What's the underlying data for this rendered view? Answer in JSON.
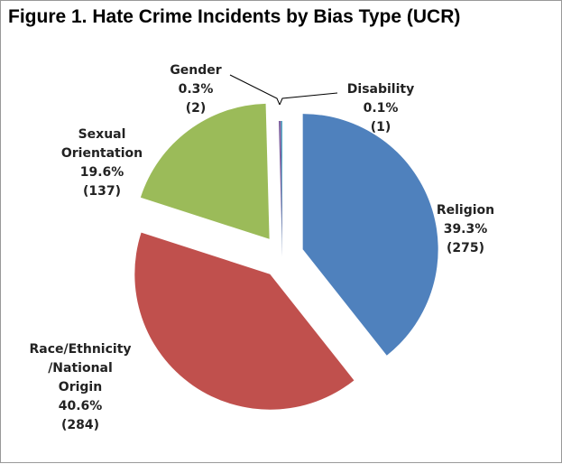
{
  "chart_data": {
    "type": "pie",
    "title": "Figure 1. Hate Crime Incidents by Bias Type (UCR)",
    "slices": [
      {
        "name": "Religion",
        "percent_label": "39.3%",
        "count_label": "(275)",
        "value": 275,
        "color": "#4f81bd",
        "exploded": true
      },
      {
        "name_lines": [
          "Race/Ethnicity",
          "/National",
          "Origin"
        ],
        "name": "Race/Ethnicity/National Origin",
        "percent_label": "40.6%",
        "count_label": "(284)",
        "value": 284,
        "color": "#c0504d",
        "exploded": true
      },
      {
        "name_lines": [
          "Sexual",
          "Orientation"
        ],
        "name": "Sexual Orientation",
        "percent_label": "19.6%",
        "count_label": "(137)",
        "value": 137,
        "color": "#9bbb59",
        "exploded": true
      },
      {
        "name": "Gender",
        "percent_label": "0.3%",
        "count_label": "(2)",
        "value": 2,
        "color": "#8064a2",
        "exploded": false
      },
      {
        "name": "Disability",
        "percent_label": "0.1%",
        "count_label": "(1)",
        "value": 1,
        "color": "#4bacc6",
        "exploded": false
      }
    ],
    "start_angle": "top",
    "direction": "clockwise"
  }
}
